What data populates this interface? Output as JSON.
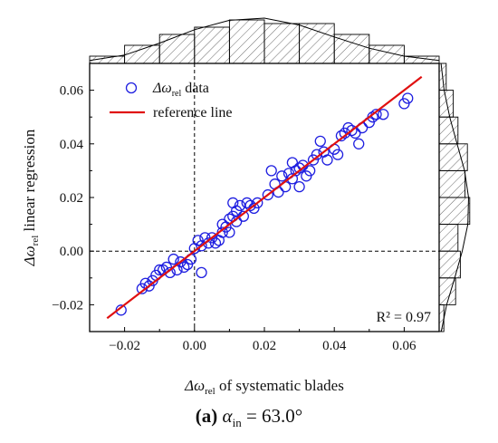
{
  "chart_data": {
    "type": "scatter",
    "xlabel": {
      "sym": "Δω",
      "sub": "rel",
      "rest": " of systematic blades"
    },
    "ylabel": {
      "sym": "Δω",
      "sub": "rel",
      "rest": " linear regression"
    },
    "xlim": [
      -0.03,
      0.07
    ],
    "ylim": [
      -0.03,
      0.07
    ],
    "xticks": [
      -0.02,
      0.0,
      0.02,
      0.04,
      0.06
    ],
    "yticks": [
      -0.02,
      0.0,
      0.02,
      0.04,
      0.06
    ],
    "xtick_labels": [
      "−0.02",
      "0.00",
      "0.02",
      "0.04",
      "0.06"
    ],
    "ytick_labels": [
      "−0.02",
      "0.00",
      "0.02",
      "0.04",
      "0.06"
    ],
    "r2_label": "R² = 0.97",
    "legend": {
      "position": "top-left",
      "data_label": {
        "sym": "Δω",
        "sub": "rel",
        "rest": " data"
      },
      "line_label": "reference line"
    },
    "series": [
      {
        "kind": "points",
        "color": "#1f1fe0",
        "points": [
          [
            -0.021,
            -0.022
          ],
          [
            -0.015,
            -0.014
          ],
          [
            -0.014,
            -0.012
          ],
          [
            -0.013,
            -0.013
          ],
          [
            -0.012,
            -0.011
          ],
          [
            -0.011,
            -0.009
          ],
          [
            -0.01,
            -0.007
          ],
          [
            -0.009,
            -0.007
          ],
          [
            -0.008,
            -0.006
          ],
          [
            -0.007,
            -0.008
          ],
          [
            -0.006,
            -0.003
          ],
          [
            -0.005,
            -0.007
          ],
          [
            -0.004,
            -0.004
          ],
          [
            -0.003,
            -0.006
          ],
          [
            -0.002,
            -0.005
          ],
          [
            -0.001,
            -0.003
          ],
          [
            0.0,
            0.001
          ],
          [
            0.001,
            0.004
          ],
          [
            0.002,
            -0.008
          ],
          [
            0.002,
            0.002
          ],
          [
            0.003,
            0.005
          ],
          [
            0.004,
            0.003
          ],
          [
            0.005,
            0.005
          ],
          [
            0.006,
            0.003
          ],
          [
            0.007,
            0.004
          ],
          [
            0.008,
            0.01
          ],
          [
            0.008,
            0.007
          ],
          [
            0.009,
            0.009
          ],
          [
            0.01,
            0.007
          ],
          [
            0.01,
            0.012
          ],
          [
            0.011,
            0.018
          ],
          [
            0.011,
            0.013
          ],
          [
            0.012,
            0.015
          ],
          [
            0.012,
            0.011
          ],
          [
            0.013,
            0.017
          ],
          [
            0.014,
            0.013
          ],
          [
            0.015,
            0.018
          ],
          [
            0.016,
            0.017
          ],
          [
            0.017,
            0.016
          ],
          [
            0.018,
            0.018
          ],
          [
            0.021,
            0.021
          ],
          [
            0.022,
            0.03
          ],
          [
            0.023,
            0.025
          ],
          [
            0.024,
            0.022
          ],
          [
            0.025,
            0.028
          ],
          [
            0.026,
            0.024
          ],
          [
            0.027,
            0.029
          ],
          [
            0.028,
            0.027
          ],
          [
            0.028,
            0.033
          ],
          [
            0.029,
            0.03
          ],
          [
            0.03,
            0.031
          ],
          [
            0.03,
            0.024
          ],
          [
            0.031,
            0.032
          ],
          [
            0.032,
            0.028
          ],
          [
            0.033,
            0.03
          ],
          [
            0.034,
            0.034
          ],
          [
            0.035,
            0.036
          ],
          [
            0.036,
            0.041
          ],
          [
            0.037,
            0.037
          ],
          [
            0.038,
            0.034
          ],
          [
            0.04,
            0.038
          ],
          [
            0.041,
            0.036
          ],
          [
            0.042,
            0.043
          ],
          [
            0.043,
            0.044
          ],
          [
            0.044,
            0.046
          ],
          [
            0.045,
            0.045
          ],
          [
            0.046,
            0.044
          ],
          [
            0.047,
            0.04
          ],
          [
            0.048,
            0.046
          ],
          [
            0.05,
            0.048
          ],
          [
            0.051,
            0.05
          ],
          [
            0.052,
            0.051
          ],
          [
            0.054,
            0.051
          ],
          [
            0.06,
            0.055
          ],
          [
            0.061,
            0.057
          ]
        ]
      },
      {
        "kind": "line",
        "color": "#e01010",
        "x": [
          -0.025,
          0.065
        ],
        "y": [
          -0.025,
          0.065
        ]
      }
    ],
    "crosshair": {
      "x": 0.0,
      "y": 0.0
    },
    "top_histogram": {
      "bin_edges": [
        -0.03,
        -0.02,
        -0.01,
        0.0,
        0.01,
        0.02,
        0.03,
        0.04,
        0.05,
        0.06,
        0.07
      ],
      "counts": [
        2,
        5,
        8,
        10,
        12,
        11,
        11,
        8,
        5,
        2
      ],
      "curve_y": [
        0.8,
        2.3,
        5.6,
        9.3,
        11.9,
        12.5,
        10.6,
        7.3,
        4.2,
        2.0,
        0.8
      ]
    },
    "right_histogram": {
      "bin_edges": [
        -0.03,
        -0.02,
        -0.01,
        0.0,
        0.01,
        0.02,
        0.03,
        0.04,
        0.05,
        0.06,
        0.07
      ],
      "counts": [
        2,
        7,
        9,
        8,
        13,
        11,
        12,
        8,
        6,
        3
      ],
      "curve_x": [
        0.9,
        3.2,
        6.6,
        9.8,
        12.2,
        12.5,
        10.8,
        7.6,
        4.5,
        2.1,
        0.8
      ]
    }
  },
  "caption": {
    "label": "(a)",
    "sym": "α",
    "sub": "in",
    "value": " = 63.0°"
  }
}
